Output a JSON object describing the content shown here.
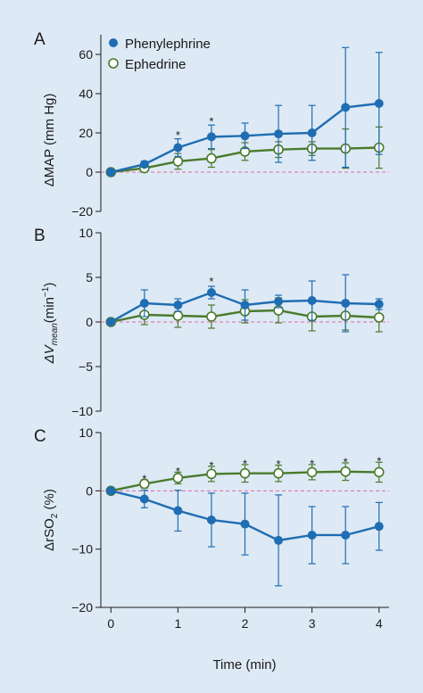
{
  "colors": {
    "background": "#dde9f4",
    "phenylephrine": "#1f6db3",
    "ephedrine": "#4a7a2c",
    "zero_line": "#e06aa8",
    "axis": "#1a1a1a"
  },
  "legend": {
    "placement": "top-left",
    "items": [
      {
        "label": "Phenylephrine",
        "marker": "filled-circle"
      },
      {
        "label": "Ephedrine",
        "marker": "open-circle"
      }
    ]
  },
  "chart_data": [
    {
      "type": "line",
      "panel": "A",
      "ylabel_main": "ΔMAP (mm Hg)",
      "ylim": [
        -20,
        70
      ],
      "yticks": [
        -20,
        0,
        20,
        40,
        60
      ],
      "x": [
        0,
        0.5,
        1,
        1.5,
        2,
        2.5,
        3,
        3.5,
        4
      ],
      "xlim": [
        -0.15,
        4.15
      ],
      "series": [
        {
          "name": "Phenylephrine",
          "values": [
            0,
            4,
            12.5,
            18,
            18.5,
            19.5,
            20,
            33,
            35
          ],
          "err": [
            0,
            1.5,
            4.5,
            6,
            6.5,
            14.5,
            14,
            30.5,
            26
          ]
        },
        {
          "name": "Ephedrine",
          "values": [
            0,
            2,
            5.5,
            7,
            10.5,
            11.5,
            12,
            12,
            12.5
          ],
          "err": [
            0,
            1.5,
            4,
            4.5,
            4.5,
            4,
            3.5,
            10,
            10.5
          ]
        }
      ],
      "annotations": [
        {
          "x": 1,
          "y": 19.5,
          "text": "*"
        },
        {
          "x": 1.5,
          "y": 26.5,
          "text": "*"
        }
      ]
    },
    {
      "type": "line",
      "panel": "B",
      "ylabel_main": "ΔV",
      "ylabel_sub": "mean",
      "ylabel_unit": "(min",
      "ylabel_sup": "−1",
      "ylabel_end": ")",
      "ylim": [
        -10,
        10
      ],
      "yticks": [
        -10,
        -5,
        0,
        5,
        10
      ],
      "x": [
        0,
        0.5,
        1,
        1.5,
        2,
        2.5,
        3,
        3.5,
        4
      ],
      "xlim": [
        -0.15,
        4.15
      ],
      "series": [
        {
          "name": "Phenylephrine",
          "values": [
            0,
            2.1,
            1.9,
            3.3,
            1.9,
            2.3,
            2.4,
            2.1,
            2.0
          ],
          "err": [
            0,
            1.5,
            0.7,
            0.7,
            1.7,
            0.7,
            2.2,
            3.2,
            0.6
          ]
        },
        {
          "name": "Ephedrine",
          "values": [
            0,
            0.8,
            0.7,
            0.6,
            1.2,
            1.3,
            0.6,
            0.7,
            0.5
          ],
          "err": [
            0,
            1.1,
            1.3,
            1.3,
            1.3,
            1.4,
            1.6,
            1.6,
            1.6
          ]
        }
      ],
      "annotations": [
        {
          "x": 1.5,
          "y": 4.7,
          "text": "*"
        }
      ]
    },
    {
      "type": "line",
      "panel": "C",
      "ylabel_main": "ΔrSO",
      "ylabel_sub": "2",
      "ylabel_unit": " (%)",
      "ylim": [
        -20,
        10
      ],
      "yticks": [
        -20,
        -10,
        0,
        10
      ],
      "x": [
        0,
        0.5,
        1,
        1.5,
        2,
        2.5,
        3,
        3.5,
        4
      ],
      "xlim": [
        -0.15,
        4.15
      ],
      "xlabel": "Time (min)",
      "xticks": [
        0,
        1,
        2,
        3,
        4
      ],
      "series": [
        {
          "name": "Phenylephrine",
          "values": [
            0,
            -1.4,
            -3.4,
            -5.0,
            -5.7,
            -8.5,
            -7.6,
            -7.6,
            -6.1
          ],
          "err": [
            0,
            1.5,
            3.5,
            4.6,
            5.3,
            7.8,
            4.9,
            4.9,
            4.1
          ]
        },
        {
          "name": "Ephedrine",
          "values": [
            0,
            1.2,
            2.2,
            2.9,
            3.0,
            3.0,
            3.2,
            3.3,
            3.2
          ],
          "err": [
            0,
            0.7,
            1.0,
            1.3,
            1.5,
            1.4,
            1.3,
            1.5,
            1.7
          ]
        }
      ],
      "annotations": [
        {
          "x": 0.5,
          "y": 2.3,
          "text": "*"
        },
        {
          "x": 1,
          "y": 3.6,
          "text": "*"
        },
        {
          "x": 1.5,
          "y": 4.6,
          "text": "*"
        },
        {
          "x": 2,
          "y": 4.9,
          "text": "*"
        },
        {
          "x": 2.5,
          "y": 4.8,
          "text": "*"
        },
        {
          "x": 3,
          "y": 4.9,
          "text": "*"
        },
        {
          "x": 3.5,
          "y": 5.2,
          "text": "*"
        },
        {
          "x": 4,
          "y": 5.3,
          "text": "*"
        }
      ]
    }
  ]
}
